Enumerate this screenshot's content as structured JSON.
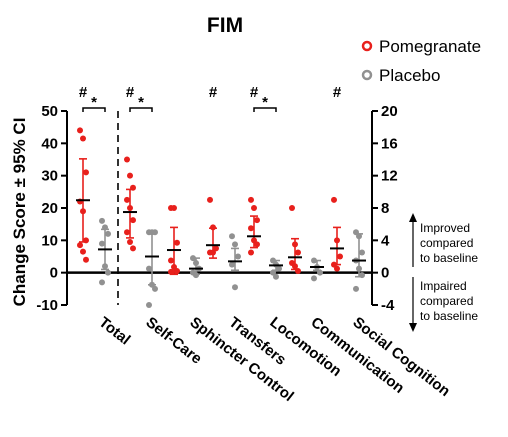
{
  "chart_data": {
    "type": "scatter",
    "title": "FIM",
    "ylabel": "Change Score ± 95% CI",
    "ylim_left": [
      -10,
      50
    ],
    "yticks_left": [
      -10,
      0,
      10,
      20,
      30,
      40,
      50
    ],
    "ytick_labels_left": [
      "-10",
      "0",
      "10",
      "20",
      "30",
      "40",
      "50"
    ],
    "ylim_right": [
      -4,
      20
    ],
    "yticks_right": [
      -4,
      0,
      4,
      8,
      12,
      16,
      20
    ],
    "ytick_labels_right": [
      "-4",
      "0",
      "4",
      "8",
      "12",
      "16",
      "20"
    ],
    "categories": [
      "Total",
      "Self-Care",
      "Sphincter Control",
      "Transfers",
      "Locomotion",
      "Communication",
      "Social Cognition"
    ],
    "legend_position": "top-right",
    "series": [
      {
        "name": "Pomegranate",
        "color": "#e8201c",
        "marker": "circle",
        "groups": [
          {
            "axis": "left",
            "mean": 22.4,
            "ci": [
              9.5,
              35.2
            ],
            "points": [
              44,
              41.5,
              31,
              22,
              19,
              10,
              8.5,
              6.5,
              4
            ]
          },
          {
            "axis": "right",
            "mean": 7.5,
            "ci": [
              4.3,
              10.3
            ],
            "points": [
              14,
              12,
              10.5,
              9,
              8,
              6.5,
              5,
              3.8,
              3
            ]
          },
          {
            "axis": "right",
            "mean": 2.8,
            "ci": [
              -0.2,
              5.6
            ],
            "points": [
              8,
              8,
              3.7,
              1.5,
              0.7,
              0.2,
              0.1
            ]
          },
          {
            "axis": "right",
            "mean": 3.4,
            "ci": [
              1.8,
              5.5
            ],
            "points": [
              9,
              5.6,
              3,
              2.5,
              2.5
            ]
          },
          {
            "axis": "right",
            "mean": 4.5,
            "ci": [
              3.1,
              7
            ],
            "points": [
              9,
              8,
              6.5,
              5.5,
              4,
              3.5,
              2.5
            ]
          },
          {
            "axis": "right",
            "mean": 1.9,
            "ci": [
              0.4,
              4.2
            ],
            "points": [
              8,
              3.5,
              2.5,
              1.2,
              0.8,
              0.2
            ]
          },
          {
            "axis": "right",
            "mean": 3,
            "ci": [
              1,
              5.6
            ],
            "points": [
              9,
              4,
              2,
              1,
              0.5
            ]
          }
        ]
      },
      {
        "name": "Placebo",
        "color": "#919191",
        "marker": "circle",
        "groups": [
          {
            "axis": "left",
            "mean": 7.2,
            "ci": [
              1,
              13.4
            ],
            "points": [
              16,
              14,
              12,
              9,
              2,
              0,
              -3
            ]
          },
          {
            "axis": "right",
            "mean": 2,
            "ci": [
              -1.5,
              5
            ],
            "points": [
              5,
              5,
              5,
              0.5,
              -1.5,
              -2,
              -4
            ]
          },
          {
            "axis": "right",
            "mean": 0.5,
            "ci": [
              -0.2,
              1.8
            ],
            "points": [
              1.8,
              1.2,
              0.5,
              0,
              -0.3
            ]
          },
          {
            "axis": "right",
            "mean": 1.4,
            "ci": [
              0.3,
              3
            ],
            "points": [
              4.5,
              3.5,
              2,
              1,
              -1.8
            ]
          },
          {
            "axis": "right",
            "mean": 0.9,
            "ci": [
              0.3,
              1.5
            ],
            "points": [
              1.5,
              1,
              0.5,
              0,
              -0.5
            ]
          },
          {
            "axis": "right",
            "mean": 0.7,
            "ci": [
              0.3,
              1.5
            ],
            "points": [
              1.5,
              0.7,
              0,
              -0.7
            ]
          },
          {
            "axis": "right",
            "mean": 1.5,
            "ci": [
              -0.5,
              4.8
            ],
            "points": [
              5,
              4.5,
              2.5,
              1.5,
              0.5,
              -0.3,
              -2
            ]
          }
        ]
      }
    ],
    "significance": {
      "hash_groups": [
        0,
        1,
        3,
        4,
        6
      ],
      "star_brackets": [
        0,
        1,
        4
      ],
      "hash_symbol": "#",
      "star_symbol": "*"
    },
    "annotations": {
      "improved": [
        "Improved",
        "compared",
        "to baseline"
      ],
      "impaired": [
        "Impaired",
        "compared",
        "to baseline"
      ]
    }
  }
}
